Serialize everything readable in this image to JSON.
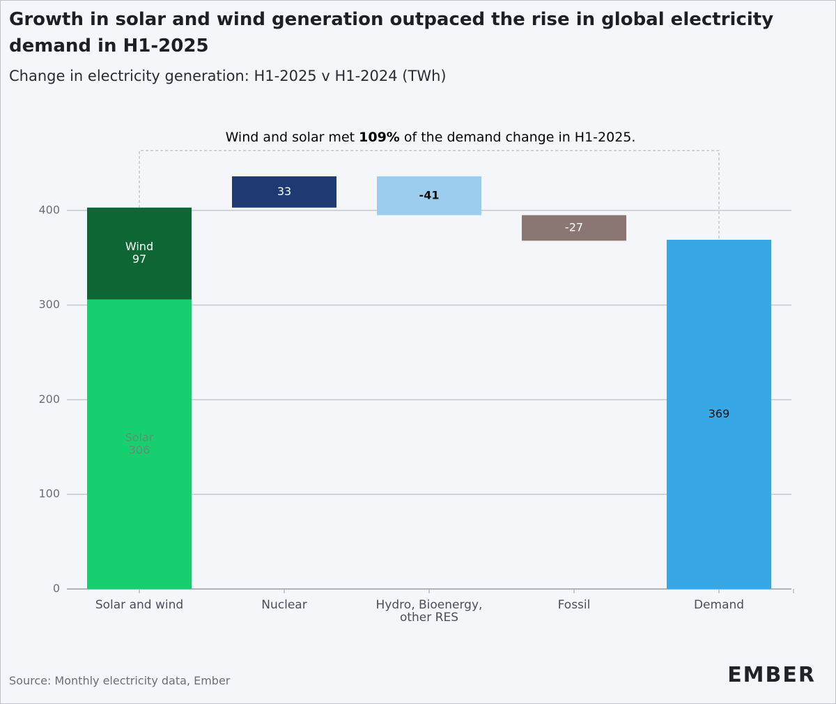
{
  "chart_data": {
    "type": "waterfall",
    "title": "Growth in solar and wind generation outpaced the rise in global electricity demand in H1-2025",
    "subtitle": "Change in electricity generation: H1-2025 v H1-2024 (TWh)",
    "annotation": [
      "Wind and solar met ",
      "109%",
      " of the demand change in H1-2025."
    ],
    "categories": [
      "Solar and wind",
      "Nuclear",
      "Hydro, Bioenergy, other RES",
      "Fossil",
      "Demand"
    ],
    "series": [
      {
        "name": "Solar",
        "color": "#17cf6f",
        "values": [
          306,
          null,
          null,
          null,
          null
        ]
      },
      {
        "name": "Wind",
        "color": "#0e6635",
        "values": [
          97,
          null,
          null,
          null,
          null
        ]
      }
    ],
    "changes": [
      null,
      33,
      -41,
      -27,
      null
    ],
    "change_colors": [
      null,
      "#1f3a73",
      "#9bcdee",
      "#8a7773",
      null
    ],
    "total": [
      null,
      null,
      null,
      null,
      369
    ],
    "total_color": "#37a8e5",
    "ylim": [
      0,
      450
    ],
    "yticks": [
      0,
      100,
      200,
      300,
      400
    ],
    "grid": true,
    "source": "Source: Monthly electricity data, Ember",
    "logo": "EMBER"
  }
}
